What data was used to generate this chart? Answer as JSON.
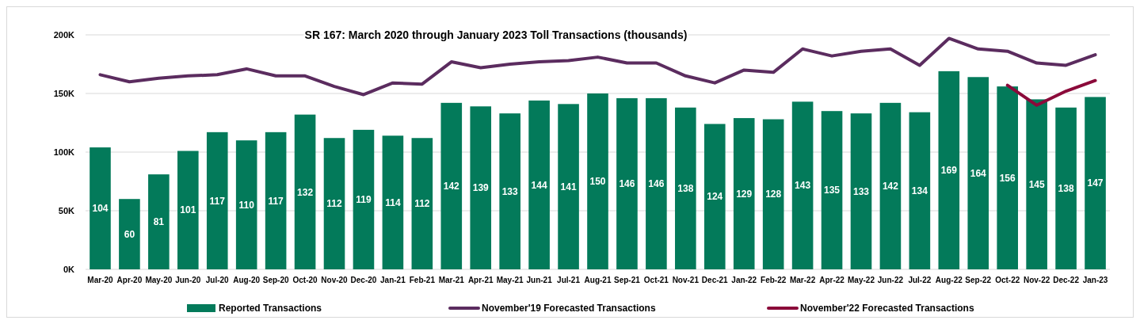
{
  "chart_data": {
    "type": "bar",
    "title": "SR 167: March 2020 through January 2023 Toll Transactions (thousands)",
    "categories": [
      "Mar-20",
      "Apr-20",
      "May-20",
      "Jun-20",
      "Jul-20",
      "Aug-20",
      "Sep-20",
      "Oct-20",
      "Nov-20",
      "Dec-20",
      "Jan-21",
      "Feb-21",
      "Mar-21",
      "Apr-21",
      "May-21",
      "Jun-21",
      "Jul-21",
      "Aug-21",
      "Sep-21",
      "Oct-21",
      "Nov-21",
      "Dec-21",
      "Jan-22",
      "Feb-22",
      "Mar-22",
      "Apr-22",
      "May-22",
      "Jun-22",
      "Jul-22",
      "Aug-22",
      "Sep-22",
      "Oct-22",
      "Nov-22",
      "Dec-22",
      "Jan-23"
    ],
    "series": [
      {
        "name": "Reported Transactions",
        "color": "#037a5a",
        "data_labels": true,
        "values": [
          104,
          60,
          81,
          101,
          117,
          110,
          117,
          132,
          112,
          119,
          114,
          112,
          142,
          139,
          133,
          144,
          141,
          150,
          146,
          146,
          138,
          124,
          129,
          128,
          143,
          135,
          133,
          142,
          134,
          169,
          164,
          156,
          145,
          138,
          147
        ]
      },
      {
        "name": "November'19 Forecasted Transactions",
        "type": "line",
        "color": "#5b2c5f",
        "values": [
          166,
          160,
          163,
          165,
          166,
          171,
          165,
          165,
          156,
          149,
          159,
          158,
          177,
          172,
          175,
          177,
          178,
          181,
          176,
          176,
          165,
          159,
          170,
          168,
          188,
          182,
          186,
          188,
          174,
          197,
          188,
          186,
          176,
          174,
          183
        ]
      },
      {
        "name": "November'22 Forecasted Transactions",
        "type": "line",
        "color": "#8b0a3a",
        "values": [
          null,
          null,
          null,
          null,
          null,
          null,
          null,
          null,
          null,
          null,
          null,
          null,
          null,
          null,
          null,
          null,
          null,
          null,
          null,
          null,
          null,
          null,
          null,
          null,
          null,
          null,
          null,
          null,
          null,
          null,
          null,
          157,
          140,
          152,
          161
        ]
      }
    ],
    "ylim": [
      0,
      200
    ],
    "yticks": [
      {
        "value": 0,
        "label": "0K"
      },
      {
        "value": 50,
        "label": "50K"
      },
      {
        "value": 100,
        "label": "100K"
      },
      {
        "value": 150,
        "label": "150K"
      },
      {
        "value": 200,
        "label": "200K"
      }
    ],
    "grid": "y",
    "legend": "bottom"
  }
}
